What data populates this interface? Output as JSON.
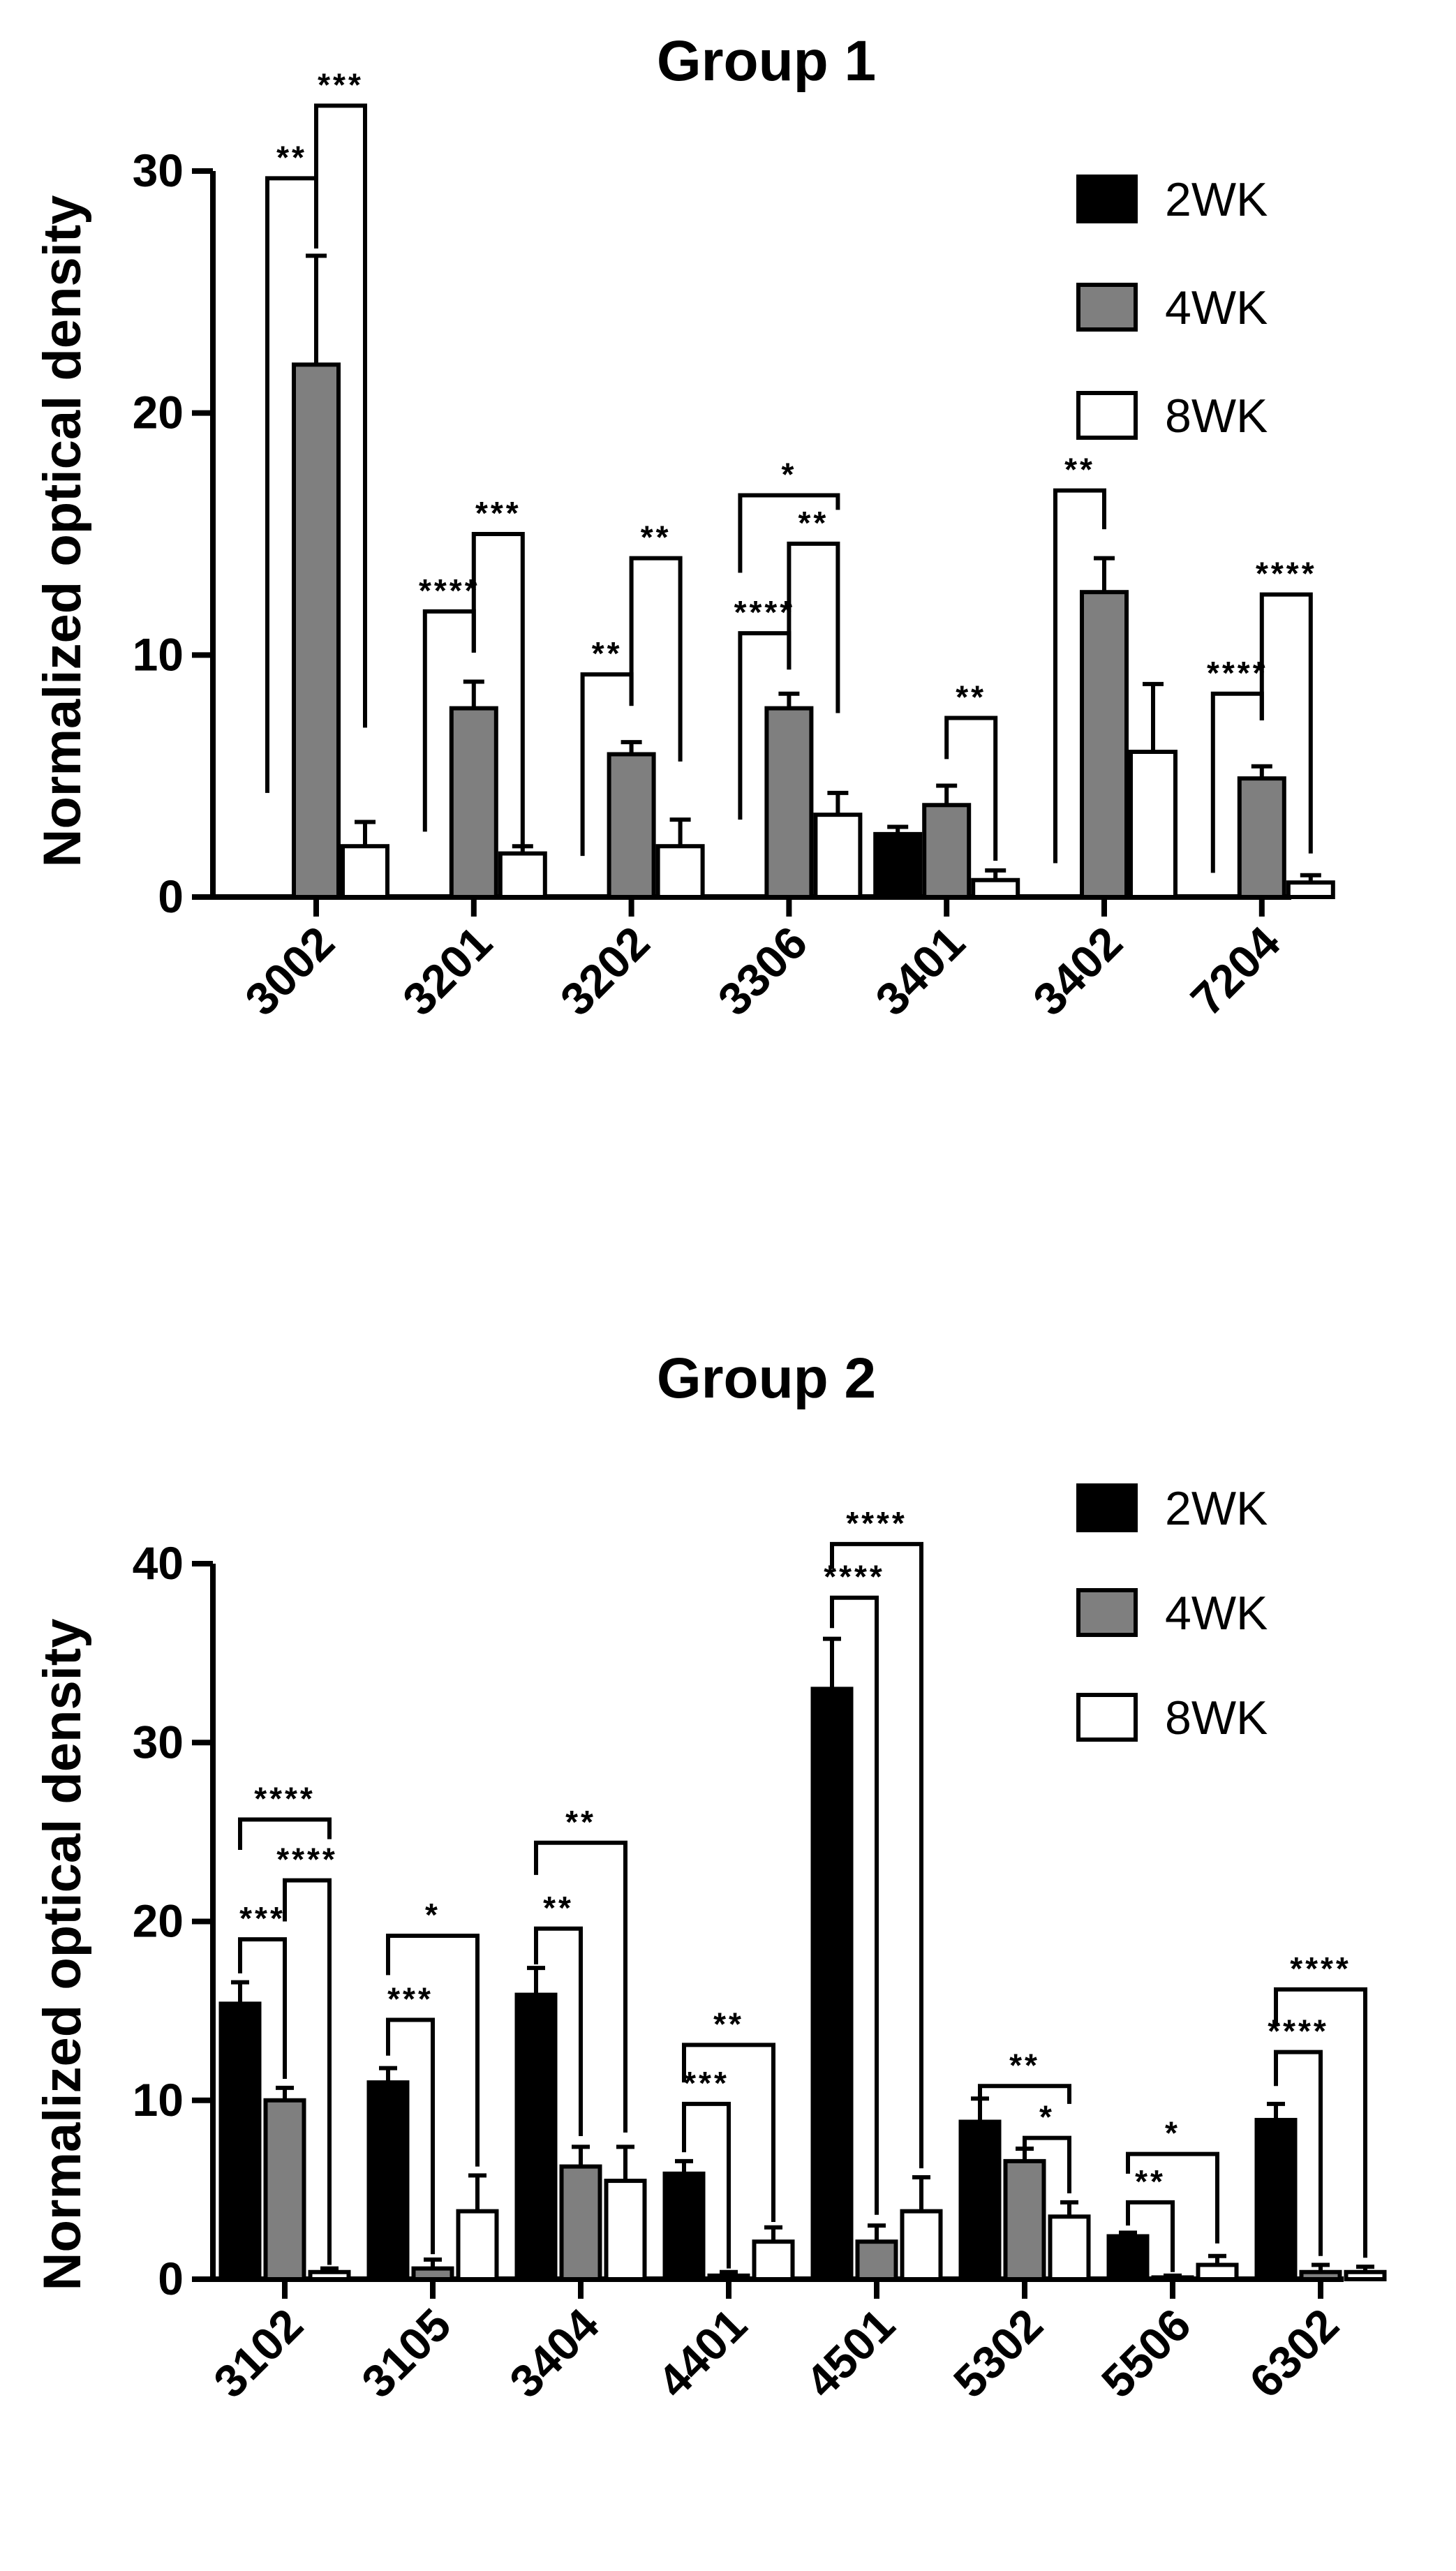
{
  "colors": {
    "2WK": "#000000",
    "4WK": "#7f7f7f",
    "8WK": "#ffffff",
    "axis": "#000000"
  },
  "chart_data": [
    {
      "type": "bar",
      "title": "Group 1",
      "ylabel": "Normalized optical density",
      "xlabel": "",
      "ylim": [
        0,
        30
      ],
      "yticks": [
        0,
        10,
        20,
        30
      ],
      "legend": [
        "2WK",
        "4WK",
        "8WK"
      ],
      "legend_position": "top-right",
      "categories": [
        "3002",
        "3201",
        "3202",
        "3306",
        "3401",
        "3402",
        "7204"
      ],
      "series": [
        {
          "name": "2WK",
          "values": [
            0,
            0,
            0,
            0,
            2.6,
            0,
            0
          ],
          "errors": [
            0,
            0,
            0,
            0,
            0.3,
            0,
            0
          ]
        },
        {
          "name": "4WK",
          "values": [
            22.0,
            7.8,
            5.9,
            7.8,
            3.8,
            12.6,
            4.9
          ],
          "errors": [
            4.5,
            1.1,
            0.5,
            0.6,
            0.8,
            1.4,
            0.5
          ]
        },
        {
          "name": "8WK",
          "values": [
            2.1,
            1.8,
            2.1,
            3.4,
            0.7,
            6.0,
            0.6
          ],
          "errors": [
            1.0,
            0.3,
            1.1,
            0.9,
            0.4,
            2.8,
            0.3
          ]
        }
      ],
      "significance": [
        {
          "cat": 0,
          "from": "2WK",
          "to": "4WK",
          "label": "**",
          "y": 29.7,
          "left_end": 4.3,
          "right_end": 26.8
        },
        {
          "cat": 0,
          "from": "4WK",
          "to": "8WK",
          "label": "***",
          "y": 32.7,
          "left_end": 26.8,
          "right_end": 7.0
        },
        {
          "cat": 1,
          "from": "2WK",
          "to": "4WK",
          "label": "****",
          "y": 11.8,
          "left_end": 2.7,
          "right_end": 10.1
        },
        {
          "cat": 1,
          "from": "4WK",
          "to": "8WK",
          "label": "***",
          "y": 15.0,
          "left_end": 10.1,
          "right_end": 2.0
        },
        {
          "cat": 2,
          "from": "2WK",
          "to": "4WK",
          "label": "**",
          "y": 9.2,
          "left_end": 1.7,
          "right_end": 7.9
        },
        {
          "cat": 2,
          "from": "4WK",
          "to": "8WK",
          "label": "**",
          "y": 14.0,
          "left_end": 7.9,
          "right_end": 5.6
        },
        {
          "cat": 3,
          "from": "2WK",
          "to": "4WK",
          "label": "****",
          "y": 10.9,
          "left_end": 3.2,
          "right_end": 9.4
        },
        {
          "cat": 3,
          "from": "4WK",
          "to": "8WK",
          "label": "**",
          "y": 14.6,
          "left_end": 9.4,
          "right_end": 7.6
        },
        {
          "cat": 3,
          "from": "2WK",
          "to": "8WK",
          "label": "*",
          "y": 16.6,
          "left_end": 13.4,
          "right_end": 16.0
        },
        {
          "cat": 4,
          "from": "4WK",
          "to": "8WK",
          "label": "**",
          "y": 7.4,
          "left_end": 5.7,
          "right_end": 1.5
        },
        {
          "cat": 5,
          "from": "2WK",
          "to": "4WK",
          "label": "**",
          "y": 16.8,
          "left_end": 1.4,
          "right_end": 15.2
        },
        {
          "cat": 6,
          "from": "2WK",
          "to": "4WK",
          "label": "****",
          "y": 8.4,
          "left_end": 1.0,
          "right_end": 7.3
        },
        {
          "cat": 6,
          "from": "4WK",
          "to": "8WK",
          "label": "****",
          "y": 12.5,
          "left_end": 7.3,
          "right_end": 1.8
        }
      ]
    },
    {
      "type": "bar",
      "title": "Group 2",
      "ylabel": "Normalized optical density",
      "xlabel": "",
      "ylim": [
        0,
        40
      ],
      "yticks": [
        0,
        10,
        20,
        30,
        40
      ],
      "legend": [
        "2WK",
        "4WK",
        "8WK"
      ],
      "legend_position": "top-right",
      "categories": [
        "3102",
        "3105",
        "3404",
        "4401",
        "4501",
        "5302",
        "5506",
        "6302"
      ],
      "series": [
        {
          "name": "2WK",
          "values": [
            15.4,
            11.0,
            15.9,
            5.9,
            33.0,
            8.8,
            2.4,
            8.9
          ],
          "errors": [
            1.2,
            0.8,
            1.5,
            0.7,
            2.8,
            1.3,
            0.2,
            0.9
          ]
        },
        {
          "name": "4WK",
          "values": [
            10.0,
            0.6,
            6.3,
            0.2,
            2.1,
            6.6,
            0.1,
            0.4
          ],
          "errors": [
            0.7,
            0.5,
            1.1,
            0.2,
            0.9,
            0.7,
            0.1,
            0.4
          ]
        },
        {
          "name": "8WK",
          "values": [
            0.4,
            3.8,
            5.5,
            2.1,
            3.8,
            3.5,
            0.8,
            0.4
          ],
          "errors": [
            0.2,
            2.0,
            1.9,
            0.8,
            1.9,
            0.8,
            0.5,
            0.3
          ]
        }
      ],
      "significance": [
        {
          "cat": 0,
          "from": "2WK",
          "to": "4WK",
          "label": "***",
          "y": 19.0,
          "left_end": 17.1,
          "right_end": 11.2
        },
        {
          "cat": 0,
          "from": "4WK",
          "to": "8WK",
          "label": "****",
          "y": 22.3,
          "left_end": 20.0,
          "right_end": 0.8
        },
        {
          "cat": 0,
          "from": "2WK",
          "to": "8WK",
          "label": "****",
          "y": 25.7,
          "left_end": 24.0,
          "right_end": 24.6
        },
        {
          "cat": 1,
          "from": "2WK",
          "to": "4WK",
          "label": "***",
          "y": 14.5,
          "left_end": 12.5,
          "right_end": 1.4
        },
        {
          "cat": 1,
          "from": "2WK",
          "to": "8WK",
          "label": "*",
          "y": 19.2,
          "left_end": 17.0,
          "right_end": 6.3
        },
        {
          "cat": 2,
          "from": "2WK",
          "to": "4WK",
          "label": "**",
          "y": 19.6,
          "left_end": 17.6,
          "right_end": 8.0
        },
        {
          "cat": 2,
          "from": "2WK",
          "to": "8WK",
          "label": "**",
          "y": 24.4,
          "left_end": 22.6,
          "right_end": 8.2
        },
        {
          "cat": 3,
          "from": "2WK",
          "to": "4WK",
          "label": "***",
          "y": 9.8,
          "left_end": 7.1,
          "right_end": 0.6
        },
        {
          "cat": 3,
          "from": "2WK",
          "to": "8WK",
          "label": "**",
          "y": 13.1,
          "left_end": 11.0,
          "right_end": 3.2
        },
        {
          "cat": 4,
          "from": "2WK",
          "to": "4WK",
          "label": "****",
          "y": 38.1,
          "left_end": 36.4,
          "right_end": 3.6
        },
        {
          "cat": 4,
          "from": "2WK",
          "to": "8WK",
          "label": "****",
          "y": 41.1,
          "left_end": 39.7,
          "right_end": 6.2
        },
        {
          "cat": 5,
          "from": "4WK",
          "to": "8WK",
          "label": "*",
          "y": 7.9,
          "left_end": 7.3,
          "right_end": 4.8
        },
        {
          "cat": 5,
          "from": "2WK",
          "to": "8WK",
          "label": "**",
          "y": 10.8,
          "left_end": 9.7,
          "right_end": 9.8
        },
        {
          "cat": 6,
          "from": "2WK",
          "to": "4WK",
          "label": "**",
          "y": 4.3,
          "left_end": 3.0,
          "right_end": 0.4
        },
        {
          "cat": 6,
          "from": "2WK",
          "to": "8WK",
          "label": "*",
          "y": 7.0,
          "left_end": 5.9,
          "right_end": 2.0
        },
        {
          "cat": 7,
          "from": "2WK",
          "to": "4WK",
          "label": "****",
          "y": 12.7,
          "left_end": 10.8,
          "right_end": 1.3
        },
        {
          "cat": 7,
          "from": "2WK",
          "to": "8WK",
          "label": "****",
          "y": 16.2,
          "left_end": 14.2,
          "right_end": 1.2
        }
      ]
    }
  ]
}
